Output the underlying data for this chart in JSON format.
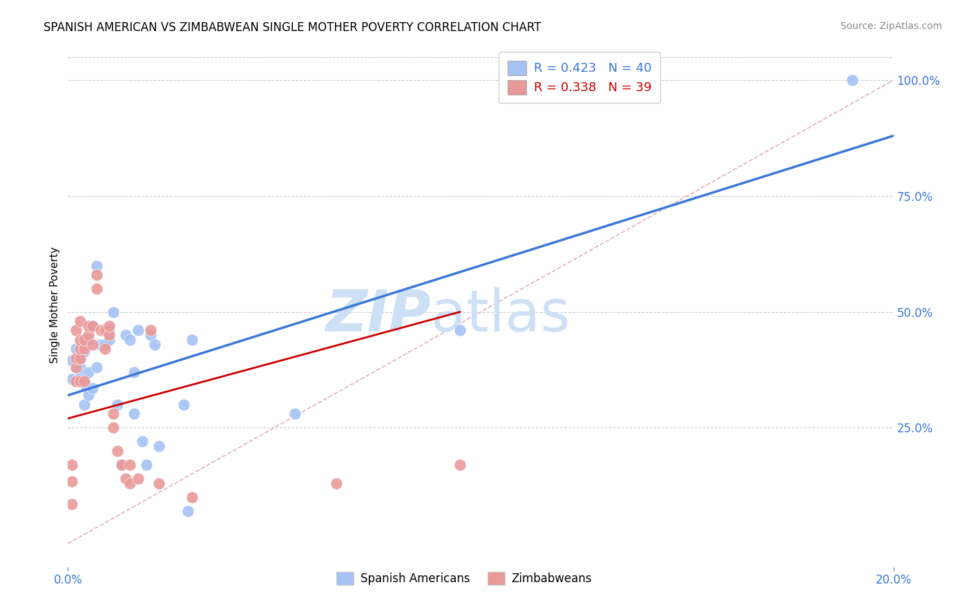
{
  "title": "SPANISH AMERICAN VS ZIMBABWEAN SINGLE MOTHER POVERTY CORRELATION CHART",
  "source": "Source: ZipAtlas.com",
  "ylabel": "Single Mother Poverty",
  "legend1_label": "R = 0.423   N = 40",
  "legend2_label": "R = 0.338   N = 39",
  "legend_bottom1": "Spanish Americans",
  "legend_bottom2": "Zimbabweans",
  "blue_color": "#a4c2f4",
  "pink_color": "#ea9999",
  "blue_line_color": "#3c78d8",
  "pink_line_color": "#cc0000",
  "diag_color": "#cccccc",
  "grid_color": "#cccccc",
  "watermark_zip_color": "#cde0f5",
  "watermark_atlas_color": "#cde0f5",
  "title_fontsize": 12,
  "source_fontsize": 10,
  "tick_label_color": "#3c78d8",
  "spanish_x": [
    0.001,
    0.001,
    0.002,
    0.002,
    0.003,
    0.003,
    0.003,
    0.004,
    0.004,
    0.004,
    0.005,
    0.005,
    0.005,
    0.006,
    0.006,
    0.007,
    0.007,
    0.008,
    0.009,
    0.01,
    0.01,
    0.011,
    0.012,
    0.013,
    0.014,
    0.015,
    0.016,
    0.016,
    0.017,
    0.018,
    0.019,
    0.02,
    0.021,
    0.022,
    0.028,
    0.029,
    0.03,
    0.055,
    0.095,
    0.19
  ],
  "spanish_y": [
    0.355,
    0.395,
    0.38,
    0.42,
    0.36,
    0.38,
    0.4,
    0.3,
    0.345,
    0.415,
    0.32,
    0.37,
    0.44,
    0.335,
    0.47,
    0.6,
    0.38,
    0.43,
    0.43,
    0.44,
    0.46,
    0.5,
    0.3,
    0.17,
    0.45,
    0.44,
    0.37,
    0.28,
    0.46,
    0.22,
    0.17,
    0.45,
    0.43,
    0.21,
    0.3,
    0.07,
    0.44,
    0.28,
    0.46,
    1.0
  ],
  "zimbabwean_x": [
    0.001,
    0.001,
    0.001,
    0.002,
    0.002,
    0.002,
    0.002,
    0.003,
    0.003,
    0.003,
    0.003,
    0.003,
    0.004,
    0.004,
    0.004,
    0.005,
    0.005,
    0.006,
    0.006,
    0.007,
    0.007,
    0.008,
    0.009,
    0.009,
    0.01,
    0.01,
    0.011,
    0.011,
    0.012,
    0.013,
    0.014,
    0.015,
    0.015,
    0.017,
    0.02,
    0.022,
    0.03,
    0.065,
    0.095
  ],
  "zimbabwean_y": [
    0.085,
    0.135,
    0.17,
    0.35,
    0.38,
    0.4,
    0.46,
    0.35,
    0.4,
    0.42,
    0.44,
    0.48,
    0.35,
    0.42,
    0.44,
    0.45,
    0.47,
    0.43,
    0.47,
    0.55,
    0.58,
    0.46,
    0.42,
    0.46,
    0.45,
    0.47,
    0.25,
    0.28,
    0.2,
    0.17,
    0.14,
    0.13,
    0.17,
    0.14,
    0.46,
    0.13,
    0.1,
    0.13,
    0.17
  ],
  "blue_line_x0": 0.0,
  "blue_line_y0": 0.32,
  "blue_line_x1": 0.2,
  "blue_line_y1": 0.88,
  "pink_line_x0": 0.0,
  "pink_line_y0": 0.27,
  "pink_line_x1": 0.095,
  "pink_line_y1": 0.5,
  "xmin": 0.0,
  "xmax": 0.2,
  "ymin": -0.05,
  "ymax": 1.08
}
